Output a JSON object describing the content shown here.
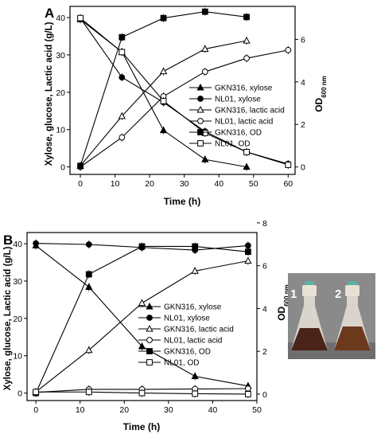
{
  "chart_data": [
    {
      "panel_label": "A",
      "type": "line",
      "xlabel": "Time (h)",
      "ylabel": "Xylose, glucose, Lactic acid (g/L)",
      "y2label_main": "OD",
      "y2label_sub": "600 nm",
      "xlim": [
        -3,
        62
      ],
      "ylim": [
        -2,
        43
      ],
      "y2lim": [
        -0.35,
        7.55
      ],
      "xticks": [
        0,
        10,
        20,
        30,
        40,
        50,
        60
      ],
      "yticks": [
        0,
        10,
        20,
        30,
        40
      ],
      "y2ticks": [
        0,
        2,
        4,
        6,
        8
      ],
      "legend_position": "center-right",
      "series": [
        {
          "name": "GKN316, xylose",
          "marker": "triangle-filled",
          "axis": "left",
          "x": [
            0,
            12,
            24,
            36,
            48
          ],
          "y": [
            39.5,
            30.8,
            9.8,
            2.0,
            0.0
          ]
        },
        {
          "name": "NL01, xylose",
          "marker": "circle-filled",
          "axis": "left",
          "x": [
            0,
            12,
            24,
            36,
            48,
            60
          ],
          "y": [
            39.8,
            24.0,
            17.3,
            9.5,
            4.0,
            0.8
          ]
        },
        {
          "name": "GKN316, lactic acid",
          "marker": "triangle-open",
          "axis": "left",
          "x": [
            0,
            12,
            24,
            36,
            48
          ],
          "y": [
            0.3,
            13.6,
            25.6,
            31.6,
            33.8
          ]
        },
        {
          "name": "NL01, lactic acid",
          "marker": "circle-open",
          "axis": "left",
          "x": [
            0,
            12,
            24,
            36,
            48,
            60
          ],
          "y": [
            0.0,
            7.9,
            18.9,
            25.5,
            29.1,
            31.3
          ]
        },
        {
          "name": "GKN316, OD",
          "marker": "square-filled",
          "axis": "right",
          "x": [
            0,
            12,
            24,
            36,
            48
          ],
          "y": [
            0.05,
            6.1,
            7.0,
            7.3,
            7.05
          ]
        },
        {
          "name": "NL01, OD",
          "marker": "square-open",
          "axis": "right",
          "x": [
            0,
            12,
            24,
            36,
            48,
            60
          ],
          "y": [
            7.0,
            5.4,
            3.1,
            1.6,
            0.7,
            0.1
          ]
        }
      ]
    },
    {
      "panel_label": "B",
      "type": "line",
      "xlabel": "Time (h)",
      "ylabel": "Xylose, glucose, Lactic acid (g/L)",
      "y2label_main": "OD",
      "y2label_sub": "600 nm",
      "xlim": [
        -2,
        50
      ],
      "ylim": [
        -2,
        43
      ],
      "y2lim": [
        -0.3,
        7.55
      ],
      "xticks": [
        0,
        10,
        20,
        30,
        40,
        50
      ],
      "yticks": [
        0,
        10,
        20,
        30,
        40
      ],
      "y2ticks": [
        0,
        2,
        4,
        6,
        8
      ],
      "legend_position": "center-right",
      "series": [
        {
          "name": "GKN316, xylose",
          "marker": "triangle-filled",
          "axis": "left",
          "x": [
            0,
            12,
            24,
            36,
            48
          ],
          "y": [
            39.5,
            28.4,
            12.5,
            4.5,
            1.9
          ]
        },
        {
          "name": "NL01, xylose",
          "marker": "circle-filled",
          "axis": "left",
          "x": [
            0,
            12,
            24,
            36,
            48
          ],
          "y": [
            40.1,
            39.8,
            39.0,
            38.3,
            39.5
          ]
        },
        {
          "name": "GKN316, lactic acid",
          "marker": "triangle-open",
          "axis": "left",
          "x": [
            0,
            12,
            24,
            36,
            48
          ],
          "y": [
            0.3,
            11.5,
            24.1,
            32.7,
            35.4
          ]
        },
        {
          "name": "NL01, lactic acid",
          "marker": "circle-open",
          "axis": "left",
          "x": [
            0,
            12,
            24,
            36,
            48
          ],
          "y": [
            0.2,
            1.0,
            1.0,
            1.1,
            1.2
          ]
        },
        {
          "name": "GKN316, OD",
          "marker": "square-filled",
          "axis": "right",
          "x": [
            0,
            12,
            24,
            36,
            48
          ],
          "y": [
            0.05,
            5.6,
            6.9,
            6.9,
            6.65
          ]
        },
        {
          "name": "NL01, OD",
          "marker": "square-open",
          "axis": "right",
          "x": [
            0,
            12,
            24,
            36,
            48
          ],
          "y": [
            0.1,
            0.1,
            0.05,
            0.02,
            0.0
          ]
        }
      ]
    }
  ],
  "photo": {
    "flask_labels": [
      "1",
      "2"
    ],
    "colors": {
      "background": "#8a8a8a",
      "broth_left": "#4a2418",
      "broth_right": "#6b3a1e",
      "glass": "#d9d4cc",
      "cap": "#5fb0a6"
    }
  }
}
